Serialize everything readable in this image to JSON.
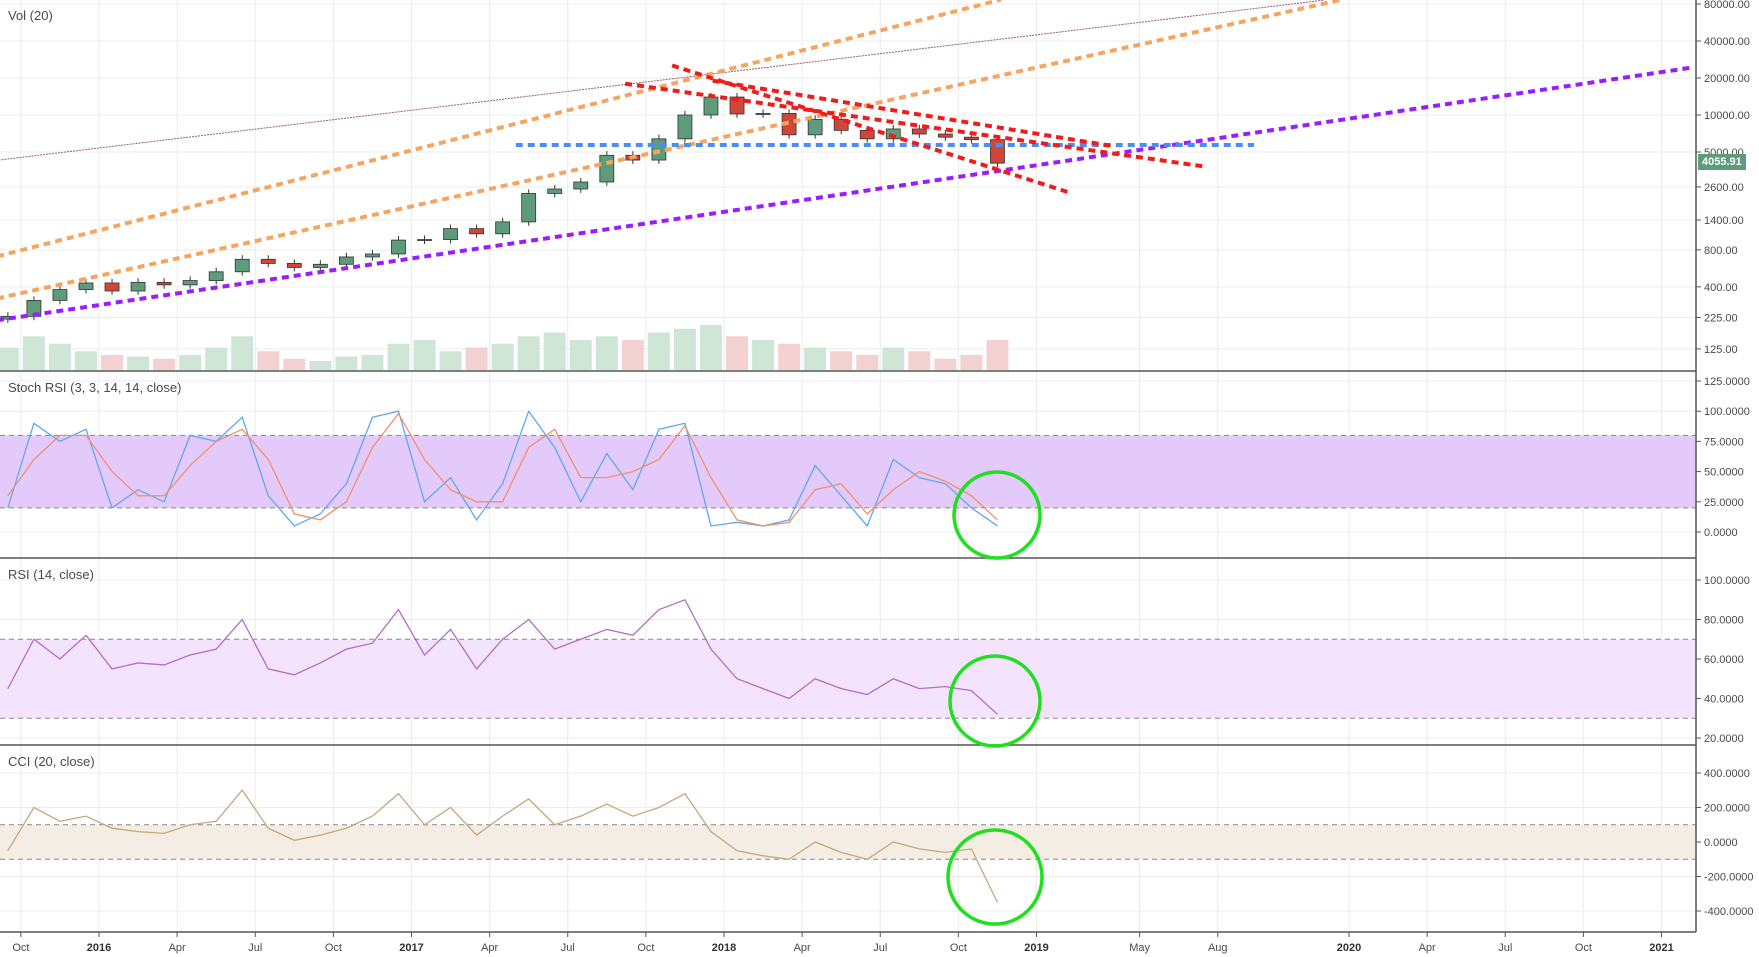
{
  "panes": {
    "price_label": "Vol (20)",
    "stoch_label": "Stoch RSI (3, 3, 14, 14, close)",
    "rsi_label": "RSI (14, close)",
    "cci_label": "CCI (20, close)"
  },
  "last_price": "4055.91",
  "colors": {
    "up": "#5d9b7a",
    "down": "#d0473a",
    "stoch_k": "#5ea8f0",
    "stoch_d": "#f0906a",
    "rsi": "#b36cc9",
    "cci": "#c8a77a",
    "stoch_band": "#e4c9fb",
    "rsi_band": "#f3e3fc",
    "cci_band": "#f3ede3",
    "circle": "#1ee01e"
  },
  "chart_data": [
    {
      "type": "candlestick",
      "title": "Vol (20)",
      "yscale": "log",
      "y_ticks": [
        "80000.00",
        "40000.00",
        "20000.00",
        "10000.00",
        "5000.00",
        "2600.00",
        "1400.00",
        "800.00",
        "400.00",
        "225.00",
        "125.00"
      ],
      "x_ticks": [
        "Oct",
        "2016",
        "Apr",
        "Jul",
        "Oct",
        "2017",
        "Apr",
        "Jul",
        "Oct",
        "2018",
        "Apr",
        "Jul",
        "Oct",
        "2019",
        "May",
        "Aug",
        "2020",
        "Apr",
        "Jul",
        "Oct",
        "2021"
      ],
      "dates": [
        "2015-09",
        "2015-10",
        "2015-11",
        "2015-12",
        "2016-01",
        "2016-02",
        "2016-03",
        "2016-04",
        "2016-05",
        "2016-06",
        "2016-07",
        "2016-08",
        "2016-09",
        "2016-10",
        "2016-11",
        "2016-12",
        "2017-01",
        "2017-02",
        "2017-03",
        "2017-04",
        "2017-05",
        "2017-06",
        "2017-07",
        "2017-08",
        "2017-09",
        "2017-10",
        "2017-11",
        "2017-12",
        "2018-01",
        "2018-02",
        "2018-03",
        "2018-04",
        "2018-05",
        "2018-06",
        "2018-07",
        "2018-08",
        "2018-09",
        "2018-10",
        "2018-11"
      ],
      "close": [
        230,
        310,
        380,
        430,
        370,
        435,
        415,
        450,
        530,
        670,
        620,
        575,
        610,
        700,
        740,
        960,
        970,
        1190,
        1080,
        1350,
        2300,
        2500,
        2850,
        4700,
        4300,
        6400,
        10000,
        14000,
        10200,
        10300,
        6900,
        9200,
        7500,
        6400,
        7700,
        7000,
        6600,
        6300,
        4055.91
      ],
      "volume": [
        30,
        45,
        35,
        25,
        20,
        18,
        15,
        20,
        30,
        45,
        25,
        15,
        12,
        18,
        20,
        35,
        40,
        25,
        30,
        35,
        45,
        50,
        40,
        45,
        40,
        50,
        55,
        60,
        45,
        40,
        35,
        30,
        25,
        20,
        30,
        25,
        15,
        20,
        40
      ],
      "drawings": [
        {
          "style": "thin-dotted",
          "color": "#9c5b7a",
          "from": [
            2015.68,
            4300
          ],
          "to": [
            2019.92,
            86000
          ]
        },
        {
          "style": "dotted",
          "color": "#f6a560",
          "from": [
            2015.68,
            714
          ],
          "to": [
            2018.88,
            86000
          ]
        },
        {
          "style": "dotted",
          "color": "#f6a560",
          "from": [
            2015.68,
            324
          ],
          "to": [
            2019.97,
            86000
          ]
        },
        {
          "style": "dotted",
          "color": "#9b1dff",
          "from": [
            2015.68,
            215
          ],
          "to": [
            2021.11,
            24600
          ]
        },
        {
          "style": "dotted",
          "color": "#4a8ef0",
          "from": [
            2017.34,
            5700
          ],
          "to": [
            2019.69,
            5700
          ]
        },
        {
          "style": "dotted",
          "color": "#ee1c1c",
          "from": [
            2017.69,
            17900
          ],
          "to": [
            2019.55,
            3770
          ]
        },
        {
          "style": "dotted",
          "color": "#ee1c1c",
          "from": [
            2017.84,
            25000
          ],
          "to": [
            2019.11,
            2320
          ]
        },
        {
          "style": "dotted",
          "color": "#ee1c1c",
          "from": [
            2017.97,
            18900
          ],
          "to": [
            2019.24,
            5600
          ]
        }
      ]
    },
    {
      "type": "line",
      "title": "Stoch RSI (3, 3, 14, 14, close)",
      "y_ticks": [
        "125.0000",
        "100.0000",
        "75.0000",
        "50.0000",
        "25.0000",
        "0.0000"
      ],
      "band": [
        20,
        80
      ],
      "series": [
        {
          "values": [
            20,
            90,
            75,
            85,
            20,
            35,
            25,
            80,
            75,
            95,
            30,
            5,
            15,
            40,
            95,
            100,
            25,
            45,
            10,
            40,
            100,
            70,
            25,
            65,
            35,
            85,
            90,
            5,
            8,
            5,
            10,
            55,
            30,
            5,
            60,
            45,
            40,
            20,
            5
          ]
        },
        {
          "values": [
            30,
            60,
            80,
            80,
            50,
            30,
            30,
            55,
            75,
            85,
            60,
            15,
            10,
            25,
            70,
            98,
            60,
            35,
            25,
            25,
            70,
            85,
            45,
            45,
            50,
            60,
            88,
            45,
            10,
            5,
            8,
            35,
            40,
            15,
            35,
            50,
            42,
            30,
            10
          ]
        }
      ]
    },
    {
      "type": "line",
      "title": "RSI (14, close)",
      "y_ticks": [
        "100.0000",
        "80.0000",
        "60.0000",
        "40.0000",
        "20.0000"
      ],
      "band": [
        30,
        70
      ],
      "series": [
        {
          "values": [
            45,
            70,
            60,
            72,
            55,
            58,
            57,
            62,
            65,
            80,
            55,
            52,
            58,
            65,
            68,
            85,
            62,
            75,
            55,
            70,
            80,
            65,
            70,
            75,
            72,
            85,
            90,
            65,
            50,
            45,
            40,
            50,
            45,
            42,
            50,
            45,
            46,
            44,
            32
          ]
        }
      ]
    },
    {
      "type": "line",
      "title": "CCI (20, close)",
      "y_ticks": [
        "400.0000",
        "200.0000",
        "0.0000",
        "-200.0000",
        "-400.0000"
      ],
      "band": [
        -100,
        100
      ],
      "series": [
        {
          "values": [
            -50,
            200,
            120,
            150,
            80,
            60,
            50,
            100,
            120,
            300,
            80,
            10,
            40,
            80,
            150,
            280,
            100,
            200,
            40,
            150,
            250,
            100,
            150,
            220,
            150,
            200,
            280,
            60,
            -50,
            -80,
            -100,
            0,
            -60,
            -100,
            0,
            -40,
            -60,
            -40,
            -350
          ]
        }
      ]
    }
  ]
}
